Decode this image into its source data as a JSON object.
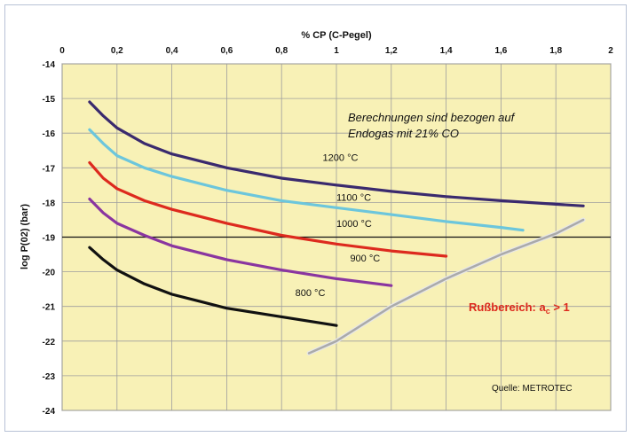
{
  "chart_data": {
    "type": "line",
    "title": "",
    "xlabel": "% CP (C-Pegel)",
    "ylabel": "log P(02) (bar)",
    "xlim": [
      0,
      2
    ],
    "ylim": [
      -24,
      -14
    ],
    "x_ticks": [
      "0",
      "0,2",
      "0,4",
      "0,6",
      "0,8",
      "1",
      "1,2",
      "1,4",
      "1,6",
      "1,8",
      "2"
    ],
    "y_ticks": [
      "-14",
      "-15",
      "-16",
      "-17",
      "-18",
      "-19",
      "-20",
      "-21",
      "-22",
      "-23",
      "-24"
    ],
    "grid": true,
    "series": [
      {
        "name": "1200 °C",
        "color": "#3a2a6e",
        "x": [
          0.1,
          0.15,
          0.2,
          0.3,
          0.4,
          0.6,
          0.8,
          1.0,
          1.2,
          1.4,
          1.6,
          1.8,
          1.9
        ],
        "y": [
          -15.1,
          -15.5,
          -15.85,
          -16.3,
          -16.6,
          -17.0,
          -17.3,
          -17.5,
          -17.68,
          -17.83,
          -17.95,
          -18.05,
          -18.1
        ]
      },
      {
        "name": "1100 °C",
        "color": "#6cc6dc",
        "x": [
          0.1,
          0.15,
          0.2,
          0.3,
          0.4,
          0.6,
          0.8,
          1.0,
          1.2,
          1.4,
          1.6,
          1.68
        ],
        "y": [
          -15.9,
          -16.3,
          -16.65,
          -17.0,
          -17.25,
          -17.65,
          -17.95,
          -18.15,
          -18.35,
          -18.55,
          -18.72,
          -18.8
        ]
      },
      {
        "name": "1000 °C",
        "color": "#dd2a1e",
        "x": [
          0.1,
          0.15,
          0.2,
          0.3,
          0.4,
          0.6,
          0.8,
          1.0,
          1.2,
          1.4
        ],
        "y": [
          -16.85,
          -17.3,
          -17.6,
          -17.95,
          -18.2,
          -18.6,
          -18.95,
          -19.2,
          -19.4,
          -19.55
        ]
      },
      {
        "name": "900 °C",
        "color": "#8a35a0",
        "x": [
          0.1,
          0.15,
          0.2,
          0.3,
          0.4,
          0.6,
          0.8,
          1.0,
          1.2
        ],
        "y": [
          -17.9,
          -18.3,
          -18.6,
          -18.95,
          -19.25,
          -19.65,
          -19.95,
          -20.2,
          -20.4
        ]
      },
      {
        "name": "800 °C",
        "color": "#111111",
        "x": [
          0.1,
          0.15,
          0.2,
          0.3,
          0.4,
          0.5,
          0.6,
          0.8,
          1.0
        ],
        "y": [
          -19.3,
          -19.65,
          -19.95,
          -20.35,
          -20.65,
          -20.85,
          -21.05,
          -21.3,
          -21.55
        ]
      },
      {
        "name": "",
        "color": "#aaaaaa",
        "x": [
          0.9,
          1.0,
          1.2,
          1.4,
          1.6,
          1.8,
          1.9
        ],
        "y": [
          -22.35,
          -22.0,
          -21.0,
          -20.2,
          -19.5,
          -18.9,
          -18.5
        ]
      }
    ],
    "curve_labels": [
      {
        "text": "1200 °C",
        "x": 0.95,
        "y": -16.8
      },
      {
        "text": "1100 °C",
        "x": 1.0,
        "y": -17.95
      },
      {
        "text": "1000 °C",
        "x": 1.0,
        "y": -18.7
      },
      {
        "text": "900 °C",
        "x": 1.05,
        "y": -19.7
      },
      {
        "text": "800 °C",
        "x": 0.85,
        "y": -20.7
      }
    ],
    "colors": {
      "plot_bg": "#f8f1b6",
      "grid": "#9e9e9e",
      "ref_line": "#111111",
      "red_label": "#dd2a1e"
    }
  },
  "annotations": {
    "note_line1": "Berechnungen sind bezogen auf",
    "note_line2": "Endogas mit 21% CO",
    "soot_region_prefix": "Rußbereich: a",
    "soot_region_sub": "c",
    "soot_region_suffix": " > 1",
    "source": "Quelle: METROTEC"
  }
}
